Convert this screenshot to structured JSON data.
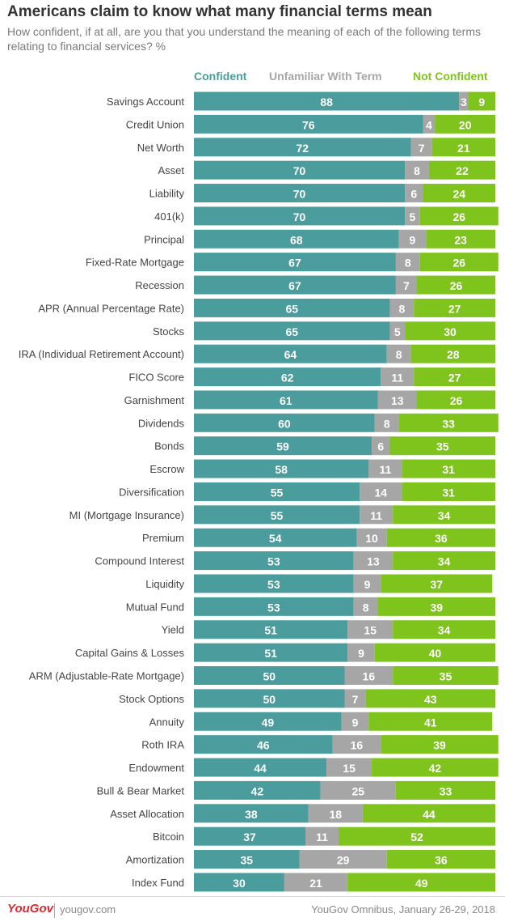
{
  "header": {
    "title": "Americans claim to know what many financial terms mean",
    "subtitle": "How confident, if at all, are you that you understand the meaning of each of the following terms relating to financial services? %"
  },
  "chart_data": {
    "type": "bar",
    "orientation": "horizontal",
    "stacked": true,
    "legend_position": "top",
    "grid": false,
    "xlim": [
      0,
      100
    ],
    "categories": [
      "Savings Account",
      "Credit Union",
      "Net Worth",
      "Asset",
      "Liability",
      "401(k)",
      "Principal",
      "Fixed-Rate Mortgage",
      "Recession",
      "APR (Annual Percentage Rate)",
      "Stocks",
      "IRA (Individual Retirement Account)",
      "FICO Score",
      "Garnishment",
      "Dividends",
      "Bonds",
      "Escrow",
      "Diversification",
      "MI (Mortgage Insurance)",
      "Premium",
      "Compound Interest",
      "Liquidity",
      "Mutual Fund",
      "Yield",
      "Capital Gains & Losses",
      "ARM (Adjustable-Rate Mortgage)",
      "Stock Options",
      "Annuity",
      "Roth IRA",
      "Endowment",
      "Bull & Bear Market",
      "Asset Allocation",
      "Bitcoin",
      "Amortization",
      "Index Fund"
    ],
    "series": [
      {
        "name": "Confident",
        "color": "#4a9d9c",
        "values": [
          88,
          76,
          72,
          70,
          70,
          70,
          68,
          67,
          67,
          65,
          65,
          64,
          62,
          61,
          60,
          59,
          58,
          55,
          55,
          54,
          53,
          53,
          53,
          51,
          51,
          50,
          50,
          49,
          46,
          44,
          42,
          38,
          37,
          35,
          30
        ]
      },
      {
        "name": "Unfamiliar With Term",
        "color": "#a6a6a6",
        "values": [
          3,
          4,
          7,
          8,
          6,
          5,
          9,
          8,
          7,
          8,
          5,
          8,
          11,
          13,
          8,
          6,
          11,
          14,
          11,
          10,
          13,
          9,
          8,
          15,
          9,
          16,
          7,
          9,
          16,
          15,
          25,
          18,
          11,
          29,
          21
        ]
      },
      {
        "name": "Not Confident",
        "color": "#7fc31d",
        "values": [
          9,
          20,
          21,
          22,
          24,
          26,
          23,
          26,
          26,
          27,
          30,
          28,
          27,
          26,
          33,
          35,
          31,
          31,
          34,
          36,
          34,
          37,
          39,
          34,
          40,
          35,
          43,
          41,
          39,
          42,
          33,
          44,
          52,
          36,
          49
        ]
      }
    ]
  },
  "footer": {
    "logo": "YouGov",
    "site": "yougov.com",
    "source": "YouGov Omnibus, January 26-29, 2018"
  }
}
